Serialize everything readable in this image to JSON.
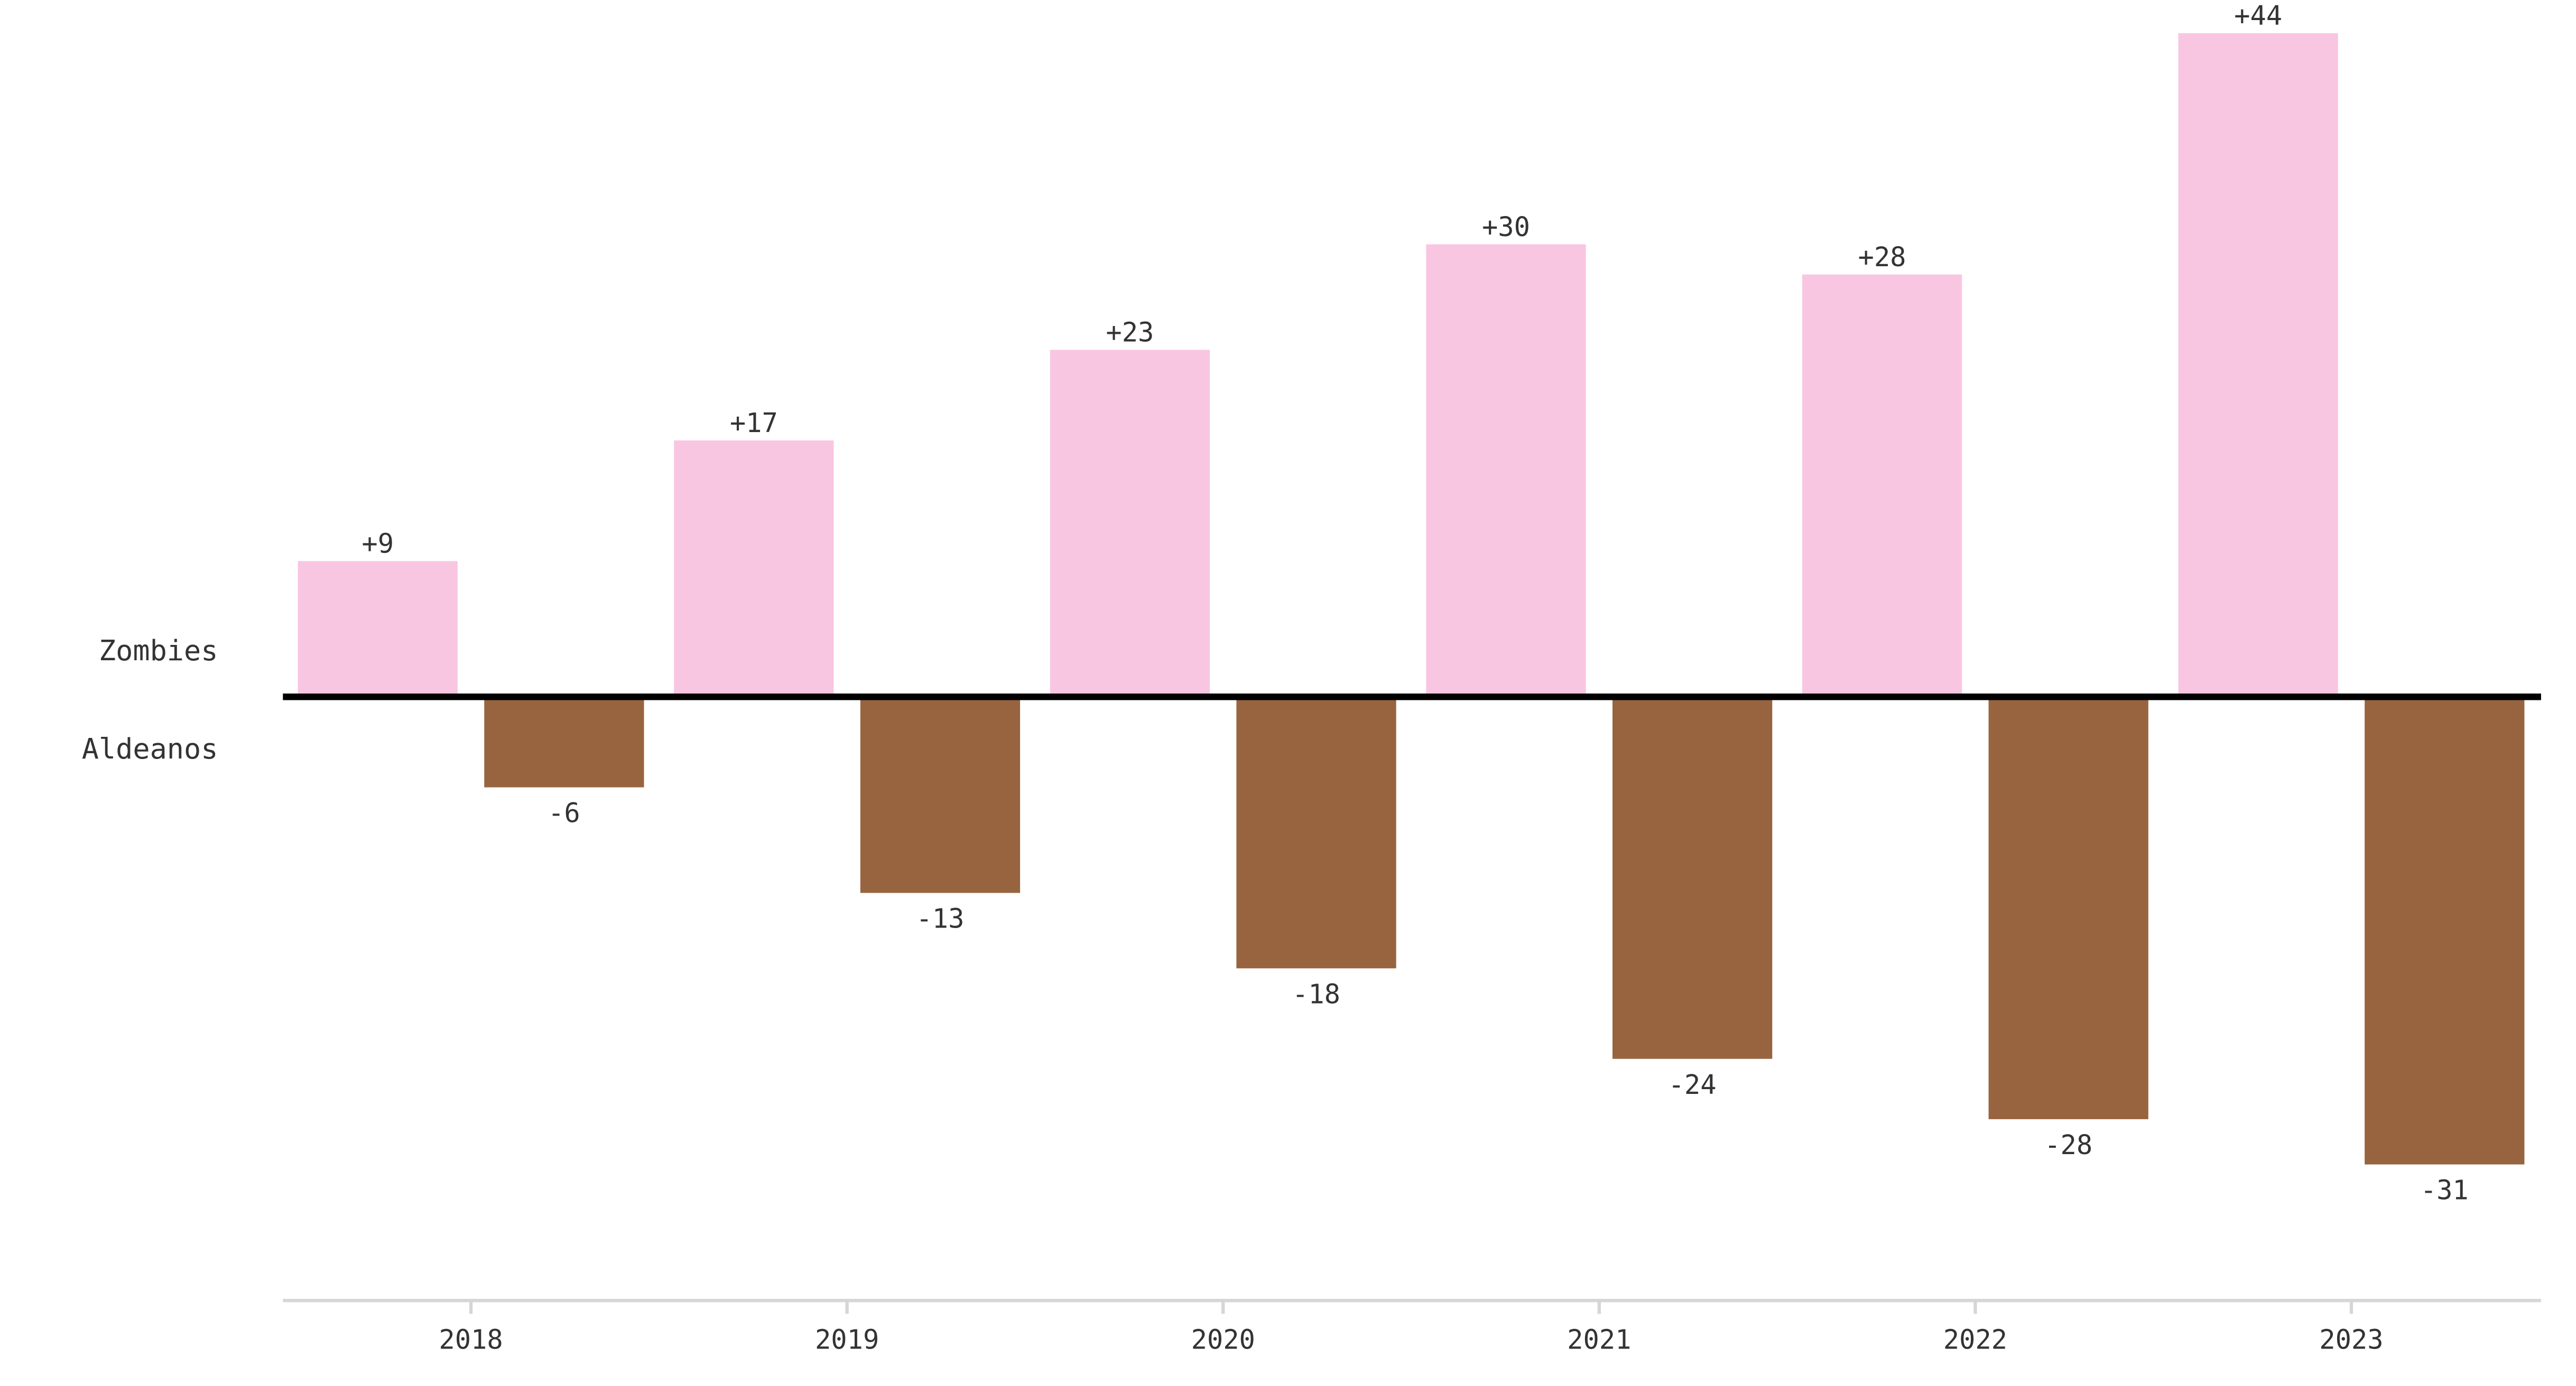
{
  "chart_data": {
    "type": "bar",
    "categories": [
      "2018",
      "2019",
      "2020",
      "2021",
      "2022",
      "2023"
    ],
    "series": [
      {
        "name": "Zombies",
        "values": [
          9,
          17,
          23,
          30,
          28,
          44
        ],
        "labels": [
          "+9",
          "+17",
          "+23",
          "+30",
          "+28",
          "+44"
        ]
      },
      {
        "name": "Aldeanos",
        "values": [
          -6,
          -13,
          -18,
          -24,
          -28,
          -31
        ],
        "labels": [
          "-6",
          "-13",
          "-18",
          "-24",
          "-28",
          "-31"
        ]
      }
    ],
    "colors": {
      "Zombies": "#f9c6e2",
      "Aldeanos": "#98643f",
      "zero_line": "#000000",
      "axis": "#d6d6d6"
    },
    "title": "",
    "xlabel": "",
    "ylabel": "",
    "grid": false,
    "legend": "left"
  }
}
